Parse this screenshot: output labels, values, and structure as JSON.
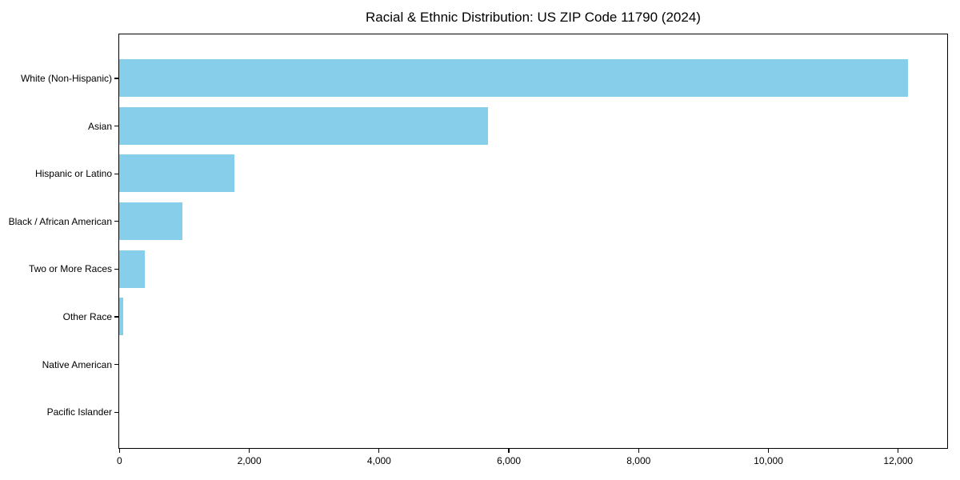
{
  "title": "Racial & Ethnic Distribution: US ZIP Code 11790 (2024)",
  "chart_data": {
    "type": "bar",
    "orientation": "horizontal",
    "title": "Racial & Ethnic Distribution: US ZIP Code 11790 (2024)",
    "categories": [
      "White (Non-Hispanic)",
      "Asian",
      "Hispanic or Latino",
      "Black / African American",
      "Two or More Races",
      "Other Race",
      "Native American",
      "Pacific Islander"
    ],
    "values": [
      12150,
      5680,
      1780,
      970,
      400,
      60,
      0,
      0
    ],
    "xlabel": "",
    "ylabel": "",
    "xlim": [
      0,
      12750
    ],
    "x_ticks": [
      0,
      2000,
      4000,
      6000,
      8000,
      10000,
      12000
    ],
    "x_tick_labels": [
      "0",
      "2,000",
      "4,000",
      "6,000",
      "8,000",
      "10,000",
      "12,000"
    ],
    "bar_color": "#87CEEB",
    "background_color": "#ffffff",
    "axis_color": "#000000",
    "grid": false,
    "legend": null
  }
}
